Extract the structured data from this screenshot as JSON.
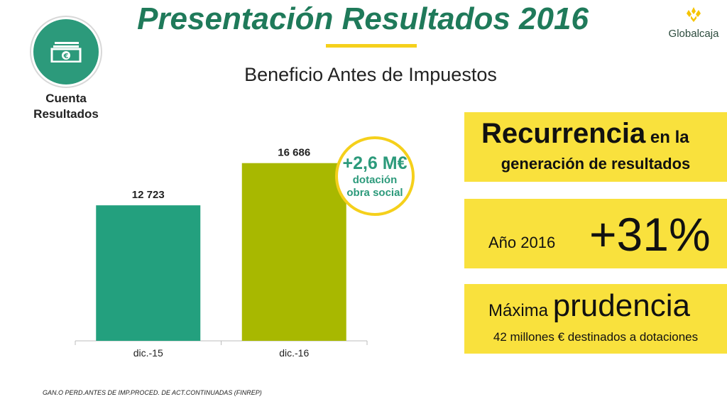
{
  "header": {
    "title": "Presentación Resultados 2016",
    "subtitle": "Beneficio Antes de Impuestos"
  },
  "badge": {
    "icon": "banknote-euro-icon",
    "label_line1": "Cuenta",
    "label_line2": "Resultados"
  },
  "logo": {
    "text": "Globalcaja"
  },
  "callout": {
    "value": "+2,6 M€",
    "line1": "dotación",
    "line2": "obra social"
  },
  "boxes": {
    "recurrencia": {
      "big": "Recurrencia",
      "small": " en la",
      "line2": "generación de resultados"
    },
    "crecimiento": {
      "year": "Año 2016",
      "pct": "+31%"
    },
    "prudencia": {
      "w1": "Máxima ",
      "w2": "prudencia",
      "line2": "42 millones € destinados a dotaciones"
    }
  },
  "footnote": "GAN.O PERD.ANTES DE IMP.PROCED. DE ACT.CONTINUADAS (FINREP)",
  "colors": {
    "bar1": "#23a07e",
    "bar2": "#a8b800",
    "accent": "#f5d01b",
    "title": "#1f7a5a",
    "box": "#f9e13d"
  },
  "chart_data": {
    "type": "bar",
    "categories": [
      "dic.-15",
      "dic.-16"
    ],
    "values": [
      12723,
      16686
    ],
    "value_labels": [
      "12 723",
      "16 686"
    ],
    "ylim": [
      0,
      20000
    ],
    "grid": false,
    "legend": "none"
  }
}
